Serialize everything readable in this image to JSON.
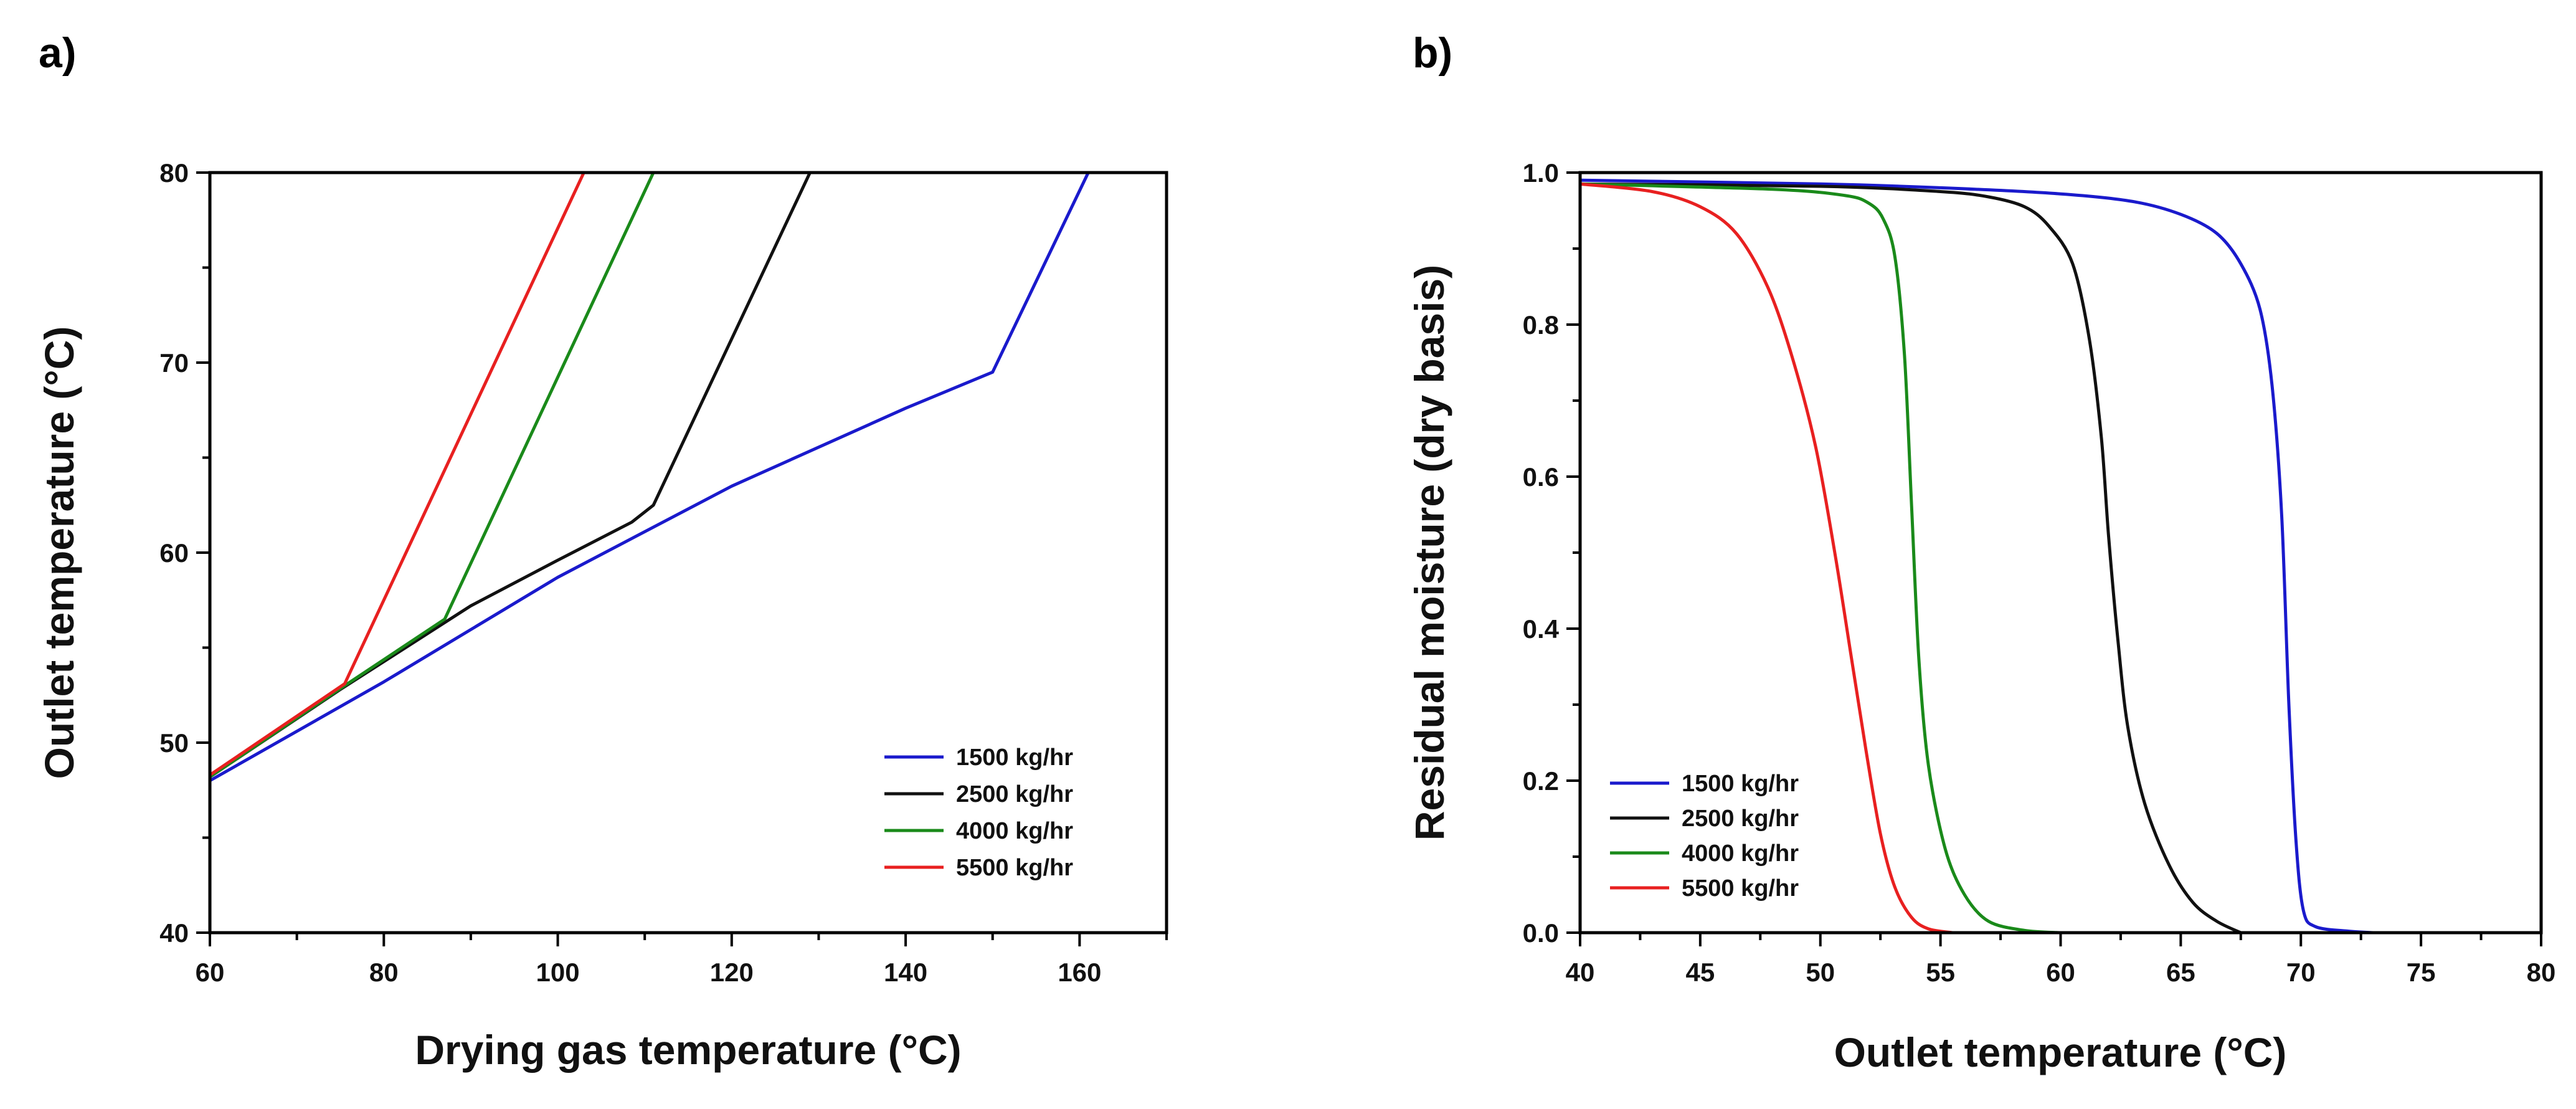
{
  "chart_data": [
    {
      "type": "line",
      "panel_label": "a)",
      "xlabel": "Drying gas temperature (°C)",
      "ylabel": "Outlet temperature (°C)",
      "xlim": [
        60,
        170
      ],
      "ylim": [
        40,
        80
      ],
      "x_ticks": [
        60,
        80,
        100,
        120,
        140,
        160
      ],
      "y_ticks": [
        40,
        50,
        60,
        70,
        80
      ],
      "x_ticks_display": [
        "60",
        "80",
        "100",
        "120",
        "140",
        "160"
      ],
      "y_ticks_display": [
        "40",
        "50",
        "60",
        "70",
        "80"
      ],
      "legend_position": "bottom-right",
      "series": [
        {
          "name": "1500 kg/hr",
          "color": "#1a1acc",
          "points": [
            [
              60,
              48
            ],
            [
              80,
              53.2
            ],
            [
              100,
              58.7
            ],
            [
              120,
              63.5
            ],
            [
              140,
              67.6
            ],
            [
              150,
              69.5
            ],
            [
              161,
              80
            ]
          ]
        },
        {
          "name": "2500 kg/hr",
          "color": "#111111",
          "points": [
            [
              60,
              48.2
            ],
            [
              75,
              52.8
            ],
            [
              90,
              57.2
            ],
            [
              100,
              59.6
            ],
            [
              108.5,
              61.6
            ],
            [
              111,
              62.5
            ],
            [
              129,
              80
            ]
          ]
        },
        {
          "name": "4000 kg/hr",
          "color": "#1a8a1a",
          "points": [
            [
              60,
              48.2
            ],
            [
              75.5,
              53
            ],
            [
              87,
              56.5
            ],
            [
              111,
              80
            ]
          ]
        },
        {
          "name": "5500 kg/hr",
          "color": "#e82020",
          "points": [
            [
              60,
              48.3
            ],
            [
              75.5,
              53.1
            ],
            [
              103,
              80
            ]
          ]
        }
      ]
    },
    {
      "type": "line",
      "panel_label": "b)",
      "xlabel": "Outlet temperature (°C)",
      "ylabel": "Residual moisture (dry basis)",
      "xlim": [
        40,
        80
      ],
      "ylim": [
        0,
        1.0
      ],
      "x_ticks": [
        40,
        45,
        50,
        55,
        60,
        65,
        70,
        75,
        80
      ],
      "y_ticks": [
        0,
        0.2,
        0.4,
        0.6,
        0.8,
        1.0
      ],
      "x_ticks_display": [
        "40",
        "45",
        "50",
        "55",
        "60",
        "65",
        "70",
        "75",
        "80"
      ],
      "y_ticks_display": [
        "0.0",
        "0.2",
        "0.4",
        "0.6",
        "0.8",
        "1.0"
      ],
      "legend_position": "bottom-left",
      "series": [
        {
          "name": "1500 kg/hr",
          "color": "#1a1acc",
          "points": [
            [
              40,
              0.99
            ],
            [
              50,
              0.985
            ],
            [
              55,
              0.98
            ],
            [
              60,
              0.972
            ],
            [
              63,
              0.962
            ],
            [
              65,
              0.945
            ],
            [
              66.5,
              0.92
            ],
            [
              67.5,
              0.88
            ],
            [
              68.3,
              0.82
            ],
            [
              68.8,
              0.72
            ],
            [
              69.2,
              0.55
            ],
            [
              69.5,
              0.3
            ],
            [
              69.8,
              0.12
            ],
            [
              70.1,
              0.03
            ],
            [
              70.6,
              0.008
            ],
            [
              72,
              0.002
            ],
            [
              73,
              0
            ]
          ]
        },
        {
          "name": "2500 kg/hr",
          "color": "#111111",
          "points": [
            [
              40,
              0.985
            ],
            [
              50,
              0.982
            ],
            [
              55,
              0.975
            ],
            [
              57,
              0.968
            ],
            [
              58.5,
              0.955
            ],
            [
              59.5,
              0.93
            ],
            [
              60.5,
              0.88
            ],
            [
              61.2,
              0.78
            ],
            [
              61.7,
              0.65
            ],
            [
              62,
              0.52
            ],
            [
              62.4,
              0.38
            ],
            [
              62.8,
              0.27
            ],
            [
              63.5,
              0.17
            ],
            [
              64.5,
              0.09
            ],
            [
              65.5,
              0.04
            ],
            [
              66.5,
              0.015
            ],
            [
              67.5,
              0
            ]
          ]
        },
        {
          "name": "4000 kg/hr",
          "color": "#1a8a1a",
          "points": [
            [
              40,
              0.985
            ],
            [
              48,
              0.978
            ],
            [
              51,
              0.97
            ],
            [
              52,
              0.96
            ],
            [
              52.6,
              0.94
            ],
            [
              53.1,
              0.89
            ],
            [
              53.5,
              0.76
            ],
            [
              53.8,
              0.56
            ],
            [
              54.1,
              0.36
            ],
            [
              54.5,
              0.22
            ],
            [
              55.2,
              0.11
            ],
            [
              56,
              0.05
            ],
            [
              57,
              0.015
            ],
            [
              58.5,
              0.003
            ],
            [
              60,
              0
            ]
          ]
        },
        {
          "name": "5500 kg/hr",
          "color": "#e82020",
          "points": [
            [
              40,
              0.985
            ],
            [
              43,
              0.975
            ],
            [
              45,
              0.955
            ],
            [
              46.5,
              0.92
            ],
            [
              47.8,
              0.85
            ],
            [
              48.8,
              0.76
            ],
            [
              49.8,
              0.64
            ],
            [
              50.6,
              0.5
            ],
            [
              51.3,
              0.36
            ],
            [
              51.9,
              0.24
            ],
            [
              52.5,
              0.13
            ],
            [
              53.1,
              0.06
            ],
            [
              53.8,
              0.02
            ],
            [
              54.5,
              0.005
            ],
            [
              55.5,
              0
            ]
          ]
        }
      ]
    }
  ]
}
